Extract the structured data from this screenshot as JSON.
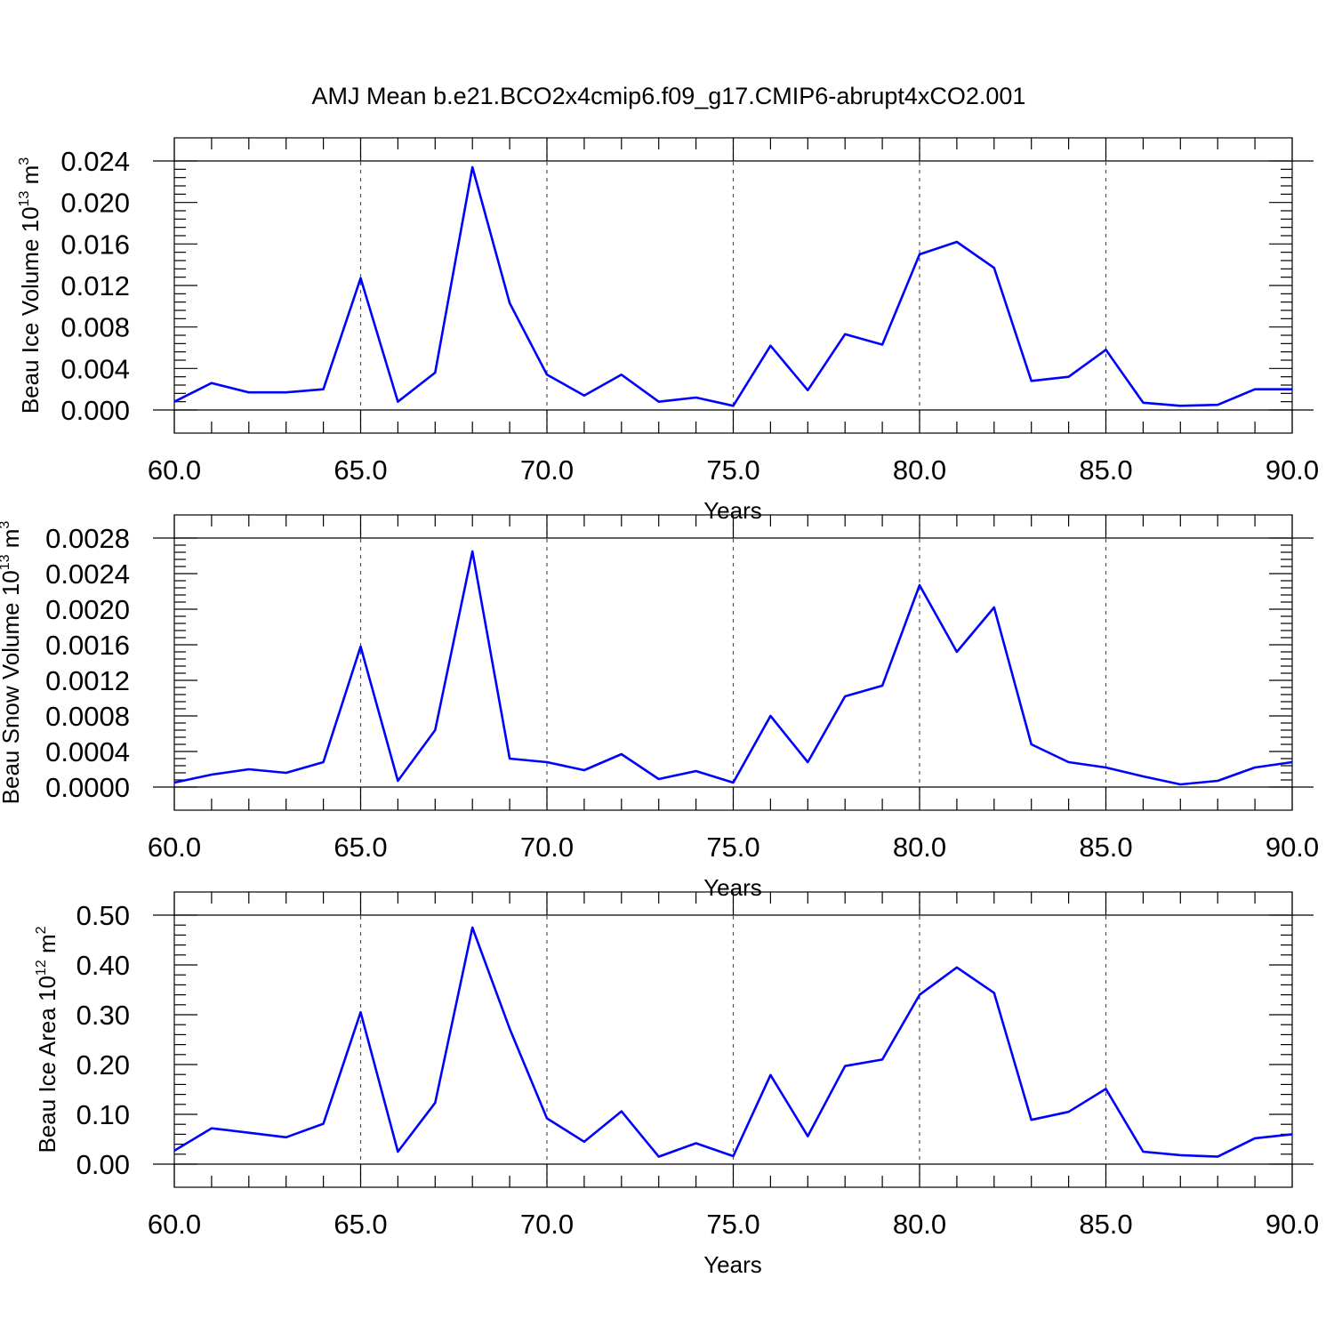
{
  "figure": {
    "title": "AMJ Mean b.e21.BCO2x4cmip6.f09_g17.CMIP6-abrupt4xCO2.001"
  },
  "chart_data": [
    {
      "type": "line",
      "xlabel": "Years",
      "ylabel": {
        "text": "Beau Ice Volume 10",
        "sup1": "13",
        "text2": " m",
        "sup2": "3"
      },
      "xlim": [
        60,
        90
      ],
      "ylim": [
        0,
        0.024
      ],
      "xticks": [
        60,
        65,
        70,
        75,
        80,
        85,
        90
      ],
      "xtick_labels": [
        "60.0",
        "65.0",
        "70.0",
        "75.0",
        "80.0",
        "85.0",
        "90.0"
      ],
      "yticks": [
        0,
        0.004,
        0.008,
        0.012,
        0.016,
        0.02,
        0.024
      ],
      "ytick_labels": [
        "0.000",
        "0.004",
        "0.008",
        "0.012",
        "0.016",
        "0.020",
        "0.024"
      ],
      "grid": "vertical dashed at major x ticks",
      "color": "#0000ff",
      "x": [
        60,
        61,
        62,
        63,
        64,
        65,
        66,
        67,
        68,
        69,
        70,
        71,
        72,
        73,
        74,
        75,
        76,
        77,
        78,
        79,
        80,
        81,
        82,
        83,
        84,
        85,
        86,
        87,
        88,
        89,
        90
      ],
      "values": [
        0.0008,
        0.0026,
        0.0017,
        0.0017,
        0.002,
        0.0127,
        0.0008,
        0.0036,
        0.0234,
        0.0103,
        0.0034,
        0.0014,
        0.0034,
        0.0008,
        0.0012,
        0.0004,
        0.0062,
        0.0019,
        0.0073,
        0.0063,
        0.015,
        0.0162,
        0.0137,
        0.0028,
        0.0032,
        0.0058,
        0.0007,
        0.0004,
        0.0005,
        0.002,
        0.002
      ]
    },
    {
      "type": "line",
      "xlabel": "Years",
      "ylabel": {
        "text": "Beau Snow Volume 10",
        "sup1": "13",
        "text2": " m",
        "sup2": "3"
      },
      "xlim": [
        60,
        90
      ],
      "ylim": [
        0,
        0.0028
      ],
      "xticks": [
        60,
        65,
        70,
        75,
        80,
        85,
        90
      ],
      "xtick_labels": [
        "60.0",
        "65.0",
        "70.0",
        "75.0",
        "80.0",
        "85.0",
        "90.0"
      ],
      "yticks": [
        0,
        0.0004,
        0.0008,
        0.0012,
        0.0016,
        0.002,
        0.0024,
        0.0028
      ],
      "ytick_labels": [
        "0.0000",
        "0.0004",
        "0.0008",
        "0.0012",
        "0.0016",
        "0.0020",
        "0.0024",
        "0.0028"
      ],
      "grid": "vertical dashed at major x ticks",
      "color": "#0000ff",
      "x": [
        60,
        61,
        62,
        63,
        64,
        65,
        66,
        67,
        68,
        69,
        70,
        71,
        72,
        73,
        74,
        75,
        76,
        77,
        78,
        79,
        80,
        81,
        82,
        83,
        84,
        85,
        86,
        87,
        88,
        89,
        90
      ],
      "values": [
        5e-05,
        0.00014,
        0.0002,
        0.00016,
        0.00028,
        0.00158,
        7e-05,
        0.00064,
        0.00265,
        0.00032,
        0.00028,
        0.00019,
        0.00037,
        9e-05,
        0.00018,
        5e-05,
        0.0008,
        0.00028,
        0.00102,
        0.00114,
        0.00227,
        0.00152,
        0.00202,
        0.00048,
        0.00028,
        0.00022,
        0.00012,
        3e-05,
        7e-05,
        0.00022,
        0.00028
      ]
    },
    {
      "type": "line",
      "xlabel": "Years",
      "ylabel": {
        "text": "Beau Ice Area 10",
        "sup1": "12",
        "text2": " m",
        "sup2": "2"
      },
      "xlim": [
        60,
        90
      ],
      "ylim": [
        0,
        0.5
      ],
      "xticks": [
        60,
        65,
        70,
        75,
        80,
        85,
        90
      ],
      "xtick_labels": [
        "60.0",
        "65.0",
        "70.0",
        "75.0",
        "80.0",
        "85.0",
        "90.0"
      ],
      "yticks": [
        0,
        0.1,
        0.2,
        0.3,
        0.4,
        0.5
      ],
      "ytick_labels": [
        "0.00",
        "0.10",
        "0.20",
        "0.30",
        "0.40",
        "0.50"
      ],
      "grid": "vertical dashed at major x ticks",
      "color": "#0000ff",
      "x": [
        60,
        61,
        62,
        63,
        64,
        65,
        66,
        67,
        68,
        69,
        70,
        71,
        72,
        73,
        74,
        75,
        76,
        77,
        78,
        79,
        80,
        81,
        82,
        83,
        84,
        85,
        86,
        87,
        88,
        89,
        90
      ],
      "values": [
        0.027,
        0.072,
        0.063,
        0.054,
        0.081,
        0.305,
        0.025,
        0.123,
        0.475,
        0.272,
        0.092,
        0.045,
        0.106,
        0.015,
        0.042,
        0.016,
        0.179,
        0.056,
        0.197,
        0.21,
        0.34,
        0.395,
        0.344,
        0.089,
        0.105,
        0.151,
        0.025,
        0.018,
        0.015,
        0.052,
        0.06
      ]
    }
  ]
}
